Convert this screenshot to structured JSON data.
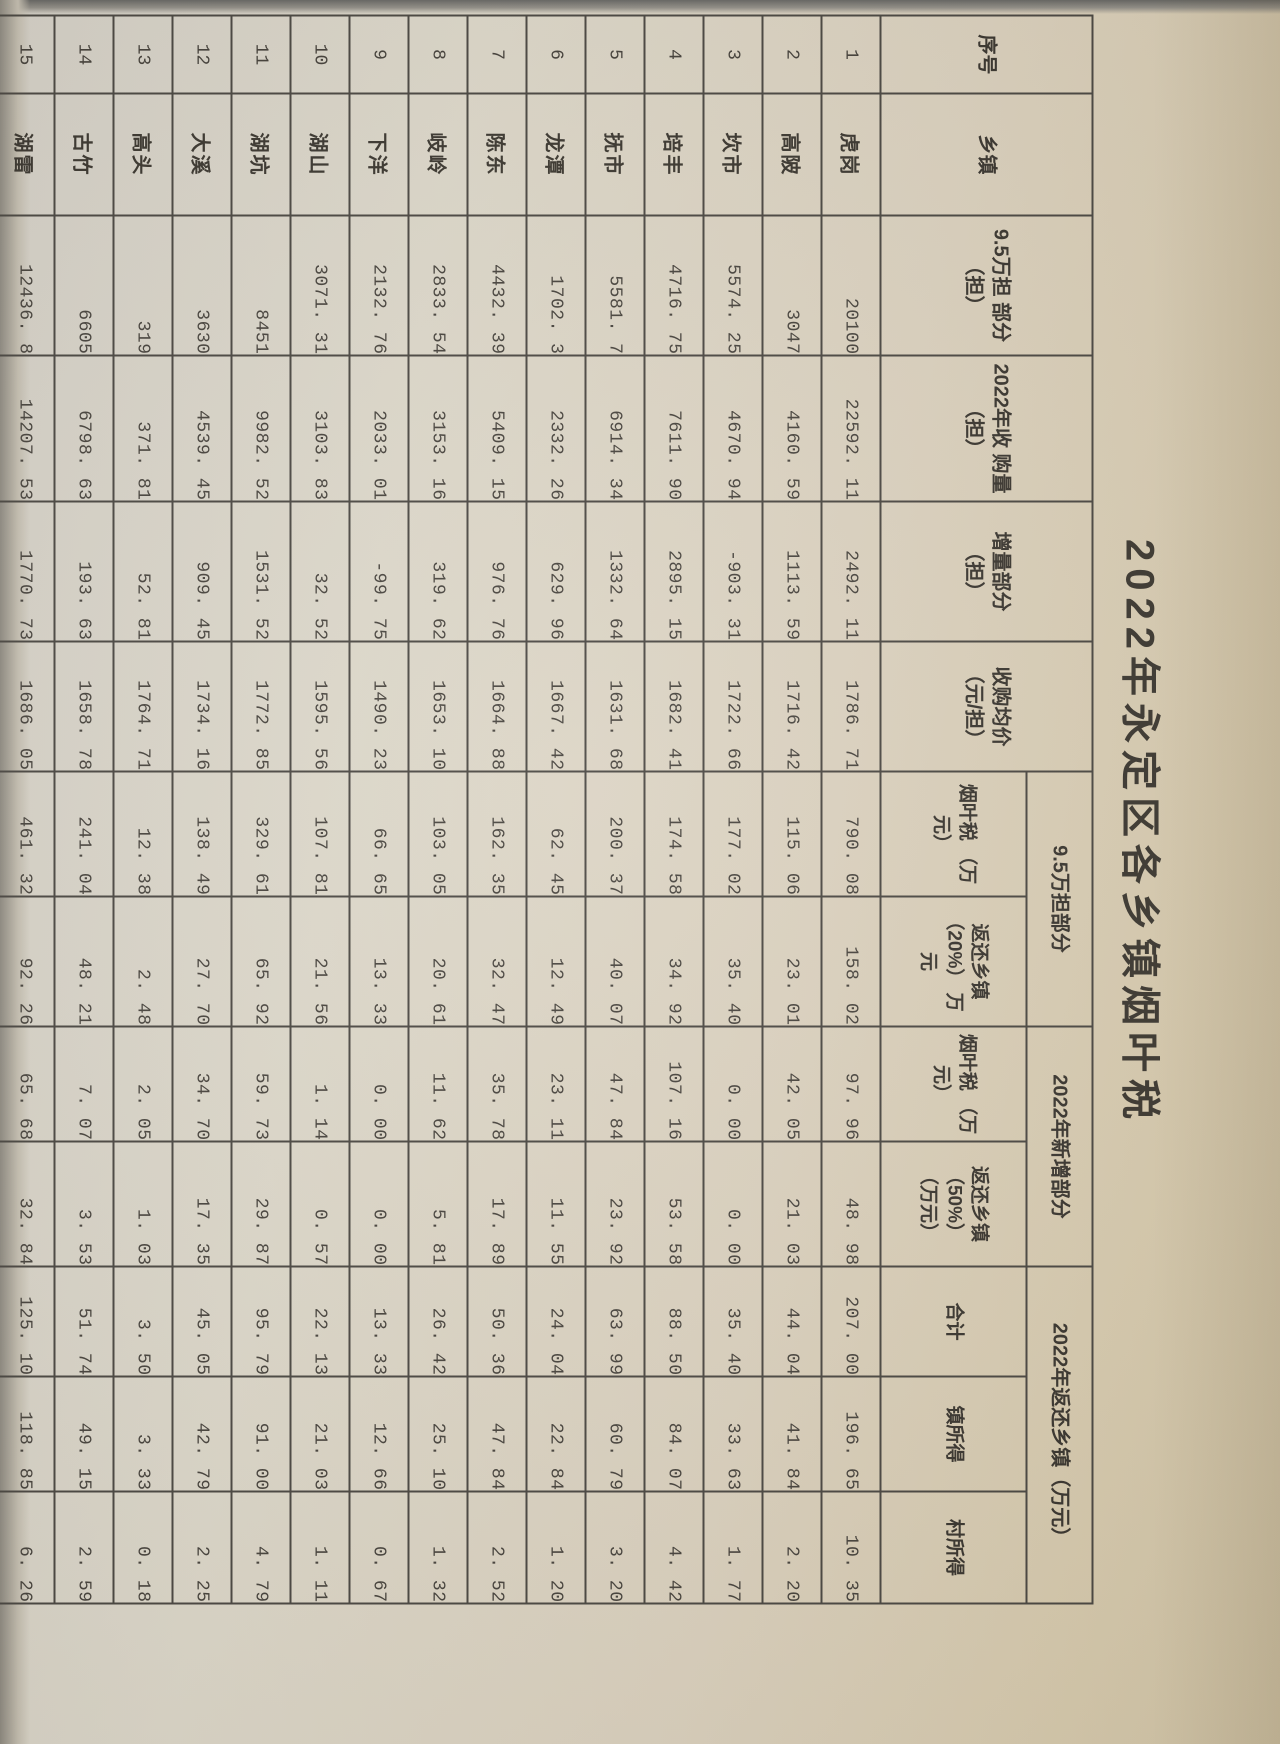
{
  "photo": {
    "title": "2022年永定区各乡镇烟叶税"
  },
  "table": {
    "headers": {
      "no": "序号",
      "township": "乡镇",
      "base_part": "9.5万担 部分 （担）",
      "purchase_2022": "2022年收 购量 （担）",
      "increment": "增量部分 （担）",
      "avg_price": "收购均价 （元/担）",
      "group_base": "9.5万担部分",
      "group_new": "2022年新增部分",
      "group_return": "2022年返还乡镇（万元）",
      "base_tax": "烟叶税 （万元）",
      "base_return": "返还乡镇 （20%） 万元",
      "new_tax": "烟叶税 （万元）",
      "new_return": "返还乡镇 （50%） （万元）",
      "total": "合计",
      "town_share": "镇所得",
      "village_share": "村所得"
    },
    "rows": [
      {
        "no": "1",
        "township": "虎岗",
        "values": [
          "20100",
          "22592. 11",
          "2492. 11",
          "1786. 71",
          "790. 08",
          "158. 02",
          "97. 96",
          "48. 98",
          "207. 00",
          "196. 65",
          "10. 35"
        ]
      },
      {
        "no": "2",
        "township": "高陂",
        "values": [
          "3047",
          "4160. 59",
          "1113. 59",
          "1716. 42",
          "115. 06",
          "23. 01",
          "42. 05",
          "21. 03",
          "44. 04",
          "41. 84",
          "2. 20"
        ]
      },
      {
        "no": "3",
        "township": "坎市",
        "values": [
          "5574. 25",
          "4670. 94",
          "-903. 31",
          "1722. 66",
          "177. 02",
          "35. 40",
          "0. 00",
          "0. 00",
          "35. 40",
          "33. 63",
          "1. 77"
        ]
      },
      {
        "no": "4",
        "township": "培丰",
        "values": [
          "4716. 75",
          "7611. 90",
          "2895. 15",
          "1682. 41",
          "174. 58",
          "34. 92",
          "107. 16",
          "53. 58",
          "88. 50",
          "84. 07",
          "4. 42"
        ]
      },
      {
        "no": "5",
        "township": "抚市",
        "values": [
          "5581. 7",
          "6914. 34",
          "1332. 64",
          "1631. 68",
          "200. 37",
          "40. 07",
          "47. 84",
          "23. 92",
          "63. 99",
          "60. 79",
          "3. 20"
        ]
      },
      {
        "no": "6",
        "township": "龙潭",
        "values": [
          "1702. 3",
          "2332. 26",
          "629. 96",
          "1667. 42",
          "62. 45",
          "12. 49",
          "23. 11",
          "11. 55",
          "24. 04",
          "22. 84",
          "1. 20"
        ]
      },
      {
        "no": "7",
        "township": "陈东",
        "values": [
          "4432. 39",
          "5409. 15",
          "976. 76",
          "1664. 88",
          "162. 35",
          "32. 47",
          "35. 78",
          "17. 89",
          "50. 36",
          "47. 84",
          "2. 52"
        ]
      },
      {
        "no": "8",
        "township": "岐岭",
        "values": [
          "2833. 54",
          "3153. 16",
          "319. 62",
          "1653. 10",
          "103. 05",
          "20. 61",
          "11. 62",
          "5. 81",
          "26. 42",
          "25. 10",
          "1. 32"
        ]
      },
      {
        "no": "9",
        "township": "下洋",
        "values": [
          "2132. 76",
          "2033. 01",
          "-99. 75",
          "1490. 23",
          "66. 65",
          "13. 33",
          "0. 00",
          "0. 00",
          "13. 33",
          "12. 66",
          "0. 67"
        ]
      },
      {
        "no": "10",
        "township": "湖山",
        "values": [
          "3071. 31",
          "3103. 83",
          "32. 52",
          "1595. 56",
          "107. 81",
          "21. 56",
          "1. 14",
          "0. 57",
          "22. 13",
          "21. 03",
          "1. 11"
        ]
      },
      {
        "no": "11",
        "township": "湖坑",
        "values": [
          "8451",
          "9982. 52",
          "1531. 52",
          "1772. 85",
          "329. 61",
          "65. 92",
          "59. 73",
          "29. 87",
          "95. 79",
          "91. 00",
          "4. 79"
        ]
      },
      {
        "no": "12",
        "township": "大溪",
        "values": [
          "3630",
          "4539. 45",
          "909. 45",
          "1734. 16",
          "138. 49",
          "27. 70",
          "34. 70",
          "17. 35",
          "45. 05",
          "42. 79",
          "2. 25"
        ]
      },
      {
        "no": "13",
        "township": "高头",
        "values": [
          "319",
          "371. 81",
          "52. 81",
          "1764. 71",
          "12. 38",
          "2. 48",
          "2. 05",
          "1. 03",
          "3. 50",
          "3. 33",
          "0. 18"
        ]
      },
      {
        "no": "14",
        "township": "古竹",
        "values": [
          "6605",
          "6798. 63",
          "193. 63",
          "1658. 78",
          "241. 04",
          "48. 21",
          "7. 07",
          "3. 53",
          "51. 74",
          "49. 15",
          "2. 59"
        ]
      },
      {
        "no": "15",
        "township": "湖雷",
        "values": [
          "12436. 8",
          "14207. 53",
          "1770. 73",
          "1686. 05",
          "461. 32",
          "92. 26",
          "65. 68",
          "32. 84",
          "125. 10",
          "118. 85",
          "6. 26"
        ]
      }
    ]
  }
}
